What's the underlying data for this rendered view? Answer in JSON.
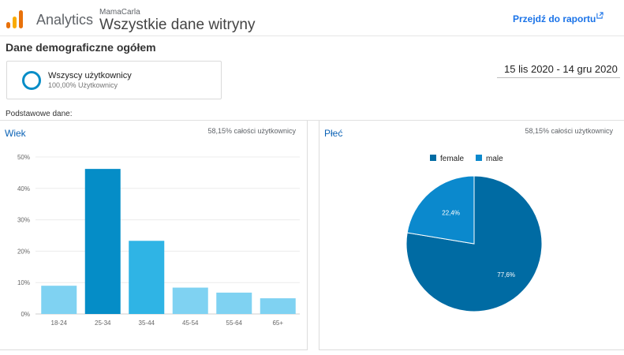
{
  "header": {
    "app_name": "Analytics",
    "account": "MamaCarla",
    "property": "Wszystkie dane witryny",
    "report_link": "Przejdź do raportu"
  },
  "section_title": "Dane demograficzne ogółem",
  "segment": {
    "name": "Wszyscy użytkownicy",
    "sub": "100,00% Użytkownicy"
  },
  "daterange": "15 lis 2020 - 14 gru 2020",
  "basic_label": "Podstawowe dane:",
  "colors": {
    "bar_main": "#058dc7",
    "bar_mid": "#2fb4e5",
    "bar_light": "#7fd2f2",
    "pie_female": "#006ba3",
    "pie_male": "#0b89cd",
    "link": "#1a73e8"
  },
  "age_panel": {
    "title": "Wiek",
    "stat": "58,15% całości użytkownicy"
  },
  "gender_panel": {
    "title": "Płeć",
    "stat": "58,15% całości użytkownicy"
  },
  "chart_data": [
    {
      "type": "bar",
      "title": "Wiek",
      "categories": [
        "18-24",
        "25-34",
        "35-44",
        "45-54",
        "55-64",
        "65+"
      ],
      "values": [
        9,
        46.2,
        23.3,
        8.4,
        6.8,
        5
      ],
      "ylim": [
        0,
        50
      ],
      "yticks": [
        "0%",
        "10%",
        "20%",
        "30%",
        "40%",
        "50%"
      ],
      "grid": true
    },
    {
      "type": "pie",
      "title": "Płeć",
      "categories": [
        "female",
        "male"
      ],
      "values": [
        77.6,
        22.4
      ],
      "labels": [
        "77,6%",
        "22,4%"
      ],
      "legend": "top"
    }
  ]
}
